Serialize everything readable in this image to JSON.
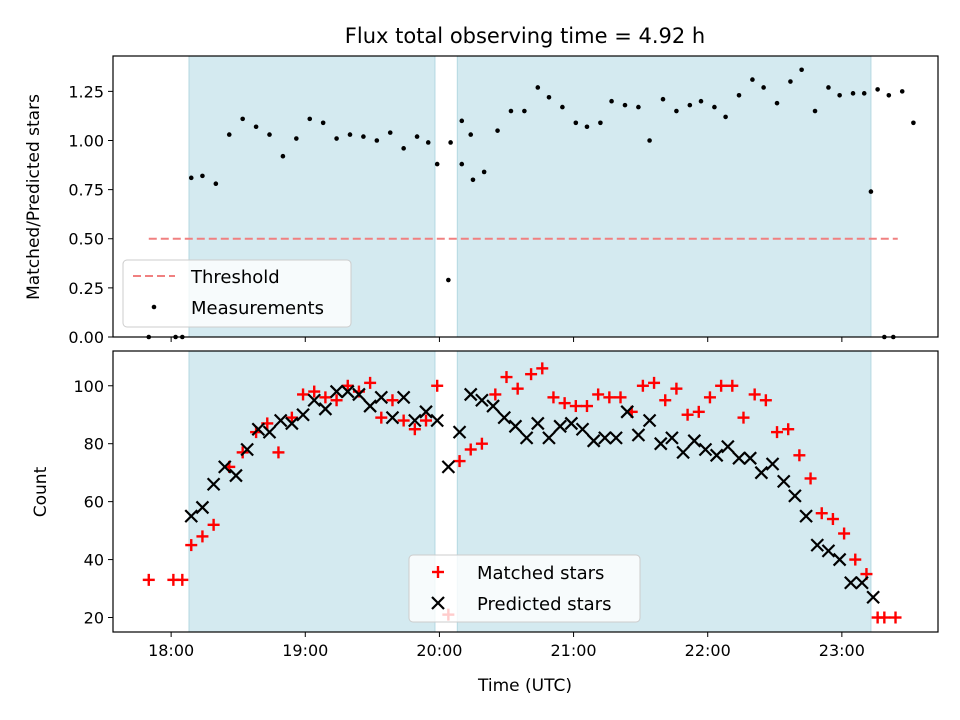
{
  "colors": {
    "shade": "#d4eaf0",
    "threshold": "#f08080",
    "measurements": "#000000",
    "matched": "#ff0000",
    "predicted": "#000000"
  },
  "chart_data": [
    {
      "type": "scatter",
      "title": "Flux total observing time = 4.92 h",
      "xlabel": "",
      "ylabel": "Matched/Predicted stars",
      "xlim": [
        "17:34",
        "23:43"
      ],
      "ylim": [
        0,
        1.43
      ],
      "yticks": [
        "0.00",
        "0.25",
        "0.50",
        "0.75",
        "1.00",
        "1.25"
      ],
      "shaded_intervals": [
        [
          "18:08",
          "19:58"
        ],
        [
          "20:08",
          "23:13"
        ]
      ],
      "legend_position": "lower-left",
      "threshold": {
        "name": "Threshold",
        "y": 0.5,
        "x_range": [
          "17:50",
          "23:25"
        ]
      },
      "series": [
        {
          "name": "Measurements",
          "points": [
            [
              "17:50",
              0.0
            ],
            [
              "18:02",
              0.0
            ],
            [
              "18:05",
              0.0
            ],
            [
              "18:09",
              0.81
            ],
            [
              "18:14",
              0.82
            ],
            [
              "18:20",
              0.78
            ],
            [
              "18:26",
              1.03
            ],
            [
              "18:32",
              1.11
            ],
            [
              "18:38",
              1.07
            ],
            [
              "18:44",
              1.03
            ],
            [
              "18:50",
              0.92
            ],
            [
              "18:56",
              1.01
            ],
            [
              "19:02",
              1.11
            ],
            [
              "19:08",
              1.09
            ],
            [
              "19:14",
              1.01
            ],
            [
              "19:20",
              1.03
            ],
            [
              "19:26",
              1.02
            ],
            [
              "19:32",
              1.0
            ],
            [
              "19:38",
              1.04
            ],
            [
              "19:44",
              0.96
            ],
            [
              "19:50",
              1.02
            ],
            [
              "19:55",
              0.99
            ],
            [
              "19:59",
              0.88
            ],
            [
              "20:05",
              0.99
            ],
            [
              "20:10",
              1.1
            ],
            [
              "20:14",
              1.03
            ],
            [
              "20:04",
              0.29
            ],
            [
              "20:10",
              0.88
            ],
            [
              "20:15",
              0.8
            ],
            [
              "20:20",
              0.84
            ],
            [
              "20:26",
              1.05
            ],
            [
              "20:32",
              1.15
            ],
            [
              "20:38",
              1.15
            ],
            [
              "20:44",
              1.27
            ],
            [
              "20:49",
              1.22
            ],
            [
              "20:55",
              1.17
            ],
            [
              "21:01",
              1.09
            ],
            [
              "21:06",
              1.07
            ],
            [
              "21:12",
              1.09
            ],
            [
              "21:17",
              1.2
            ],
            [
              "21:23",
              1.18
            ],
            [
              "21:29",
              1.17
            ],
            [
              "21:34",
              1.0
            ],
            [
              "21:40",
              1.21
            ],
            [
              "21:46",
              1.15
            ],
            [
              "21:52",
              1.18
            ],
            [
              "21:57",
              1.2
            ],
            [
              "22:03",
              1.17
            ],
            [
              "22:08",
              1.12
            ],
            [
              "22:14",
              1.23
            ],
            [
              "22:20",
              1.31
            ],
            [
              "22:25",
              1.27
            ],
            [
              "22:31",
              1.19
            ],
            [
              "22:37",
              1.3
            ],
            [
              "22:42",
              1.36
            ],
            [
              "22:48",
              1.15
            ],
            [
              "22:54",
              1.27
            ],
            [
              "22:59",
              1.23
            ],
            [
              "23:05",
              1.24
            ],
            [
              "23:10",
              1.24
            ],
            [
              "23:16",
              1.26
            ],
            [
              "23:21",
              1.23
            ],
            [
              "23:27",
              1.25
            ],
            [
              "23:32",
              1.09
            ],
            [
              "23:13",
              0.74
            ],
            [
              "23:19",
              0.0
            ],
            [
              "23:23",
              0.0
            ]
          ]
        }
      ]
    },
    {
      "type": "scatter",
      "title": "",
      "xlabel": "Time (UTC)",
      "ylabel": "Count",
      "xlim": [
        "17:34",
        "23:43"
      ],
      "ylim": [
        15,
        112
      ],
      "xticks": [
        "18:00",
        "19:00",
        "20:00",
        "21:00",
        "22:00",
        "23:00"
      ],
      "yticks": [
        "20",
        "40",
        "60",
        "80",
        "100"
      ],
      "shaded_intervals": [
        [
          "18:08",
          "19:58"
        ],
        [
          "20:08",
          "23:13"
        ]
      ],
      "legend_position": "lower-center",
      "series": [
        {
          "name": "Matched stars",
          "points": [
            [
              "17:50",
              33
            ],
            [
              "18:01",
              33
            ],
            [
              "18:05",
              33
            ],
            [
              "18:09",
              45
            ],
            [
              "18:14",
              48
            ],
            [
              "18:19",
              52
            ],
            [
              "18:26",
              72
            ],
            [
              "18:32",
              77
            ],
            [
              "18:38",
              84
            ],
            [
              "18:43",
              87
            ],
            [
              "18:48",
              77
            ],
            [
              "18:54",
              89
            ],
            [
              "18:59",
              97
            ],
            [
              "19:04",
              98
            ],
            [
              "19:09",
              96
            ],
            [
              "19:14",
              95
            ],
            [
              "19:19",
              100
            ],
            [
              "19:24",
              98
            ],
            [
              "19:29",
              101
            ],
            [
              "19:34",
              89
            ],
            [
              "19:39",
              95
            ],
            [
              "19:44",
              88
            ],
            [
              "19:49",
              85
            ],
            [
              "19:54",
              88
            ],
            [
              "19:59",
              100
            ],
            [
              "20:04",
              21
            ],
            [
              "20:09",
              74
            ],
            [
              "20:14",
              78
            ],
            [
              "20:19",
              80
            ],
            [
              "20:25",
              97
            ],
            [
              "20:30",
              103
            ],
            [
              "20:35",
              99
            ],
            [
              "20:41",
              104
            ],
            [
              "20:46",
              106
            ],
            [
              "20:51",
              96
            ],
            [
              "20:56",
              94
            ],
            [
              "21:01",
              93
            ],
            [
              "21:06",
              93
            ],
            [
              "21:11",
              97
            ],
            [
              "21:16",
              96
            ],
            [
              "21:21",
              96
            ],
            [
              "21:26",
              91
            ],
            [
              "21:31",
              100
            ],
            [
              "21:36",
              101
            ],
            [
              "21:41",
              95
            ],
            [
              "21:46",
              99
            ],
            [
              "21:51",
              90
            ],
            [
              "21:56",
              91
            ],
            [
              "22:01",
              96
            ],
            [
              "22:06",
              100
            ],
            [
              "22:11",
              100
            ],
            [
              "22:16",
              89
            ],
            [
              "22:21",
              97
            ],
            [
              "22:26",
              95
            ],
            [
              "22:31",
              84
            ],
            [
              "22:36",
              85
            ],
            [
              "22:41",
              76
            ],
            [
              "22:46",
              68
            ],
            [
              "22:51",
              56
            ],
            [
              "22:56",
              54
            ],
            [
              "23:01",
              49
            ],
            [
              "23:06",
              40
            ],
            [
              "23:11",
              35
            ],
            [
              "23:16",
              20
            ],
            [
              "23:19",
              20
            ],
            [
              "23:24",
              20
            ]
          ]
        },
        {
          "name": "Predicted stars",
          "points": [
            [
              "18:09",
              55
            ],
            [
              "18:14",
              58
            ],
            [
              "18:19",
              66
            ],
            [
              "18:24",
              72
            ],
            [
              "18:29",
              69
            ],
            [
              "18:34",
              78
            ],
            [
              "18:39",
              85
            ],
            [
              "18:44",
              84
            ],
            [
              "18:49",
              88
            ],
            [
              "18:54",
              87
            ],
            [
              "18:59",
              90
            ],
            [
              "19:04",
              95
            ],
            [
              "19:09",
              92
            ],
            [
              "19:14",
              98
            ],
            [
              "19:19",
              98
            ],
            [
              "19:24",
              97
            ],
            [
              "19:29",
              93
            ],
            [
              "19:34",
              96
            ],
            [
              "19:39",
              89
            ],
            [
              "19:44",
              96
            ],
            [
              "19:49",
              88
            ],
            [
              "19:54",
              91
            ],
            [
              "19:59",
              88
            ],
            [
              "20:04",
              72
            ],
            [
              "20:09",
              84
            ],
            [
              "20:14",
              97
            ],
            [
              "20:19",
              95
            ],
            [
              "20:24",
              93
            ],
            [
              "20:29",
              89
            ],
            [
              "20:34",
              86
            ],
            [
              "20:39",
              82
            ],
            [
              "20:44",
              87
            ],
            [
              "20:49",
              82
            ],
            [
              "20:54",
              86
            ],
            [
              "20:59",
              87
            ],
            [
              "21:04",
              85
            ],
            [
              "21:09",
              81
            ],
            [
              "21:14",
              82
            ],
            [
              "21:19",
              82
            ],
            [
              "21:24",
              91
            ],
            [
              "21:29",
              83
            ],
            [
              "21:34",
              88
            ],
            [
              "21:39",
              80
            ],
            [
              "21:44",
              82
            ],
            [
              "21:49",
              77
            ],
            [
              "21:54",
              81
            ],
            [
              "21:59",
              78
            ],
            [
              "22:04",
              76
            ],
            [
              "22:09",
              79
            ],
            [
              "22:14",
              75
            ],
            [
              "22:19",
              75
            ],
            [
              "22:24",
              70
            ],
            [
              "22:29",
              73
            ],
            [
              "22:34",
              67
            ],
            [
              "22:39",
              62
            ],
            [
              "22:44",
              55
            ],
            [
              "22:49",
              45
            ],
            [
              "22:54",
              43
            ],
            [
              "22:59",
              40
            ],
            [
              "23:04",
              32
            ],
            [
              "23:09",
              32
            ],
            [
              "23:14",
              27
            ]
          ]
        }
      ]
    }
  ]
}
